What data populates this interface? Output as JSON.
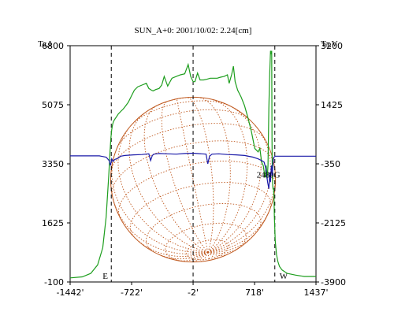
{
  "colors": {
    "intensity_line": "#1e9e1e",
    "polarization_line": "#1a1aa8",
    "solar_disk": "#c05a20",
    "axes": "#000000",
    "background": "#ffffff"
  },
  "chart_data": {
    "type": "line",
    "title": "SUN_A+0: 2001/10/02: 2.24[cm]",
    "left_axis_label": "Ta,I",
    "right_axis_label": "Ta,V",
    "xlim": [
      -1442,
      1437
    ],
    "ylim_left": [
      -100,
      6800
    ],
    "ylim_right": [
      -3900,
      3200
    ],
    "x_ticks": [
      {
        "value": -1442,
        "label": "-1442'"
      },
      {
        "value": -722,
        "label": "-722'"
      },
      {
        "value": -2,
        "label": "-2'"
      },
      {
        "value": 718,
        "label": "718'"
      },
      {
        "value": 1437,
        "label": "1437'"
      }
    ],
    "left_ticks": [
      {
        "value": -100,
        "label": "-100"
      },
      {
        "value": 1625,
        "label": "1625"
      },
      {
        "value": 3350,
        "label": "3350"
      },
      {
        "value": 5075,
        "label": "5075"
      },
      {
        "value": 6800,
        "label": "6800"
      }
    ],
    "right_ticks": [
      {
        "value": -3900,
        "label": "-3900"
      },
      {
        "value": -2125,
        "label": "-2125"
      },
      {
        "value": -350,
        "label": "-350"
      },
      {
        "value": 1425,
        "label": "1425"
      },
      {
        "value": 3200,
        "label": "3200"
      }
    ],
    "limb_markers": [
      {
        "x": -960,
        "label": "E"
      },
      {
        "x": -2,
        "label": ""
      },
      {
        "x": 955,
        "label": "W"
      }
    ],
    "annotations": [
      {
        "x": 880,
        "y_left": 2950,
        "label": "2480G"
      }
    ],
    "series": [
      {
        "axis": "left",
        "color_key": "intensity_line",
        "x": [
          -1442,
          -1300,
          -1200,
          -1120,
          -1060,
          -1020,
          -990,
          -975,
          -965,
          -955,
          -945,
          -935,
          -920,
          -900,
          -880,
          -850,
          -820,
          -790,
          -760,
          -720,
          -690,
          -650,
          -600,
          -550,
          -520,
          -490,
          -470,
          -440,
          -400,
          -370,
          -340,
          -300,
          -250,
          -200,
          -150,
          -100,
          -60,
          -30,
          -2,
          20,
          50,
          80,
          120,
          160,
          200,
          240,
          280,
          320,
          360,
          400,
          420,
          450,
          470,
          490,
          520,
          560,
          600,
          640,
          680,
          720,
          760,
          780,
          800,
          820,
          840,
          855,
          865,
          875,
          885,
          895,
          905,
          912,
          918,
          922,
          926,
          930,
          935,
          940,
          945,
          950,
          960,
          975,
          990,
          1010,
          1040,
          1100,
          1200,
          1300,
          1437
        ],
        "y": [
          20,
          50,
          150,
          400,
          900,
          1800,
          3000,
          3700,
          4100,
          4350,
          4500,
          4580,
          4650,
          4720,
          4800,
          4880,
          4950,
          5050,
          5150,
          5350,
          5500,
          5600,
          5650,
          5700,
          5550,
          5500,
          5480,
          5520,
          5550,
          5650,
          5900,
          5620,
          5850,
          5900,
          5950,
          5980,
          6250,
          5900,
          5750,
          5750,
          6000,
          5800,
          5800,
          5820,
          5850,
          5850,
          5850,
          5880,
          5900,
          5950,
          5700,
          5960,
          6200,
          5750,
          5500,
          5300,
          5050,
          4700,
          4300,
          3800,
          3700,
          3800,
          3400,
          3300,
          2950,
          3300,
          2900,
          3300,
          5000,
          6000,
          6650,
          6550,
          6650,
          4000,
          3000,
          2700,
          2600,
          2650,
          2400,
          1800,
          1100,
          700,
          500,
          350,
          250,
          150,
          100,
          60,
          60
        ]
      },
      {
        "axis": "right",
        "color_key": "polarization_line",
        "x": [
          -1442,
          -1300,
          -1100,
          -1020,
          -985,
          -970,
          -955,
          -940,
          -920,
          -880,
          -850,
          -800,
          -700,
          -600,
          -520,
          -500,
          -480,
          -460,
          -400,
          -300,
          -200,
          -100,
          -2,
          100,
          150,
          170,
          190,
          220,
          300,
          400,
          500,
          600,
          700,
          760,
          800,
          830,
          850,
          870,
          885,
          895,
          905,
          915,
          925,
          935,
          945,
          960,
          1000,
          1100,
          1200,
          1300,
          1437
        ],
        "y": [
          -110,
          -110,
          -110,
          -150,
          -250,
          -400,
          -200,
          -280,
          -220,
          -180,
          -120,
          -100,
          -80,
          -70,
          -50,
          -250,
          -100,
          -60,
          -40,
          -50,
          -60,
          -40,
          -30,
          -50,
          -60,
          -350,
          -120,
          -60,
          -50,
          -70,
          -80,
          -100,
          -150,
          -200,
          -250,
          -300,
          -500,
          -900,
          -1100,
          -600,
          -900,
          -400,
          -700,
          -250,
          -150,
          -120,
          -120,
          -120,
          -120,
          -120,
          -120
        ]
      }
    ],
    "solar_disk": {
      "center_x": -2,
      "radius_arcmin": 965
    },
    "grid": false
  }
}
